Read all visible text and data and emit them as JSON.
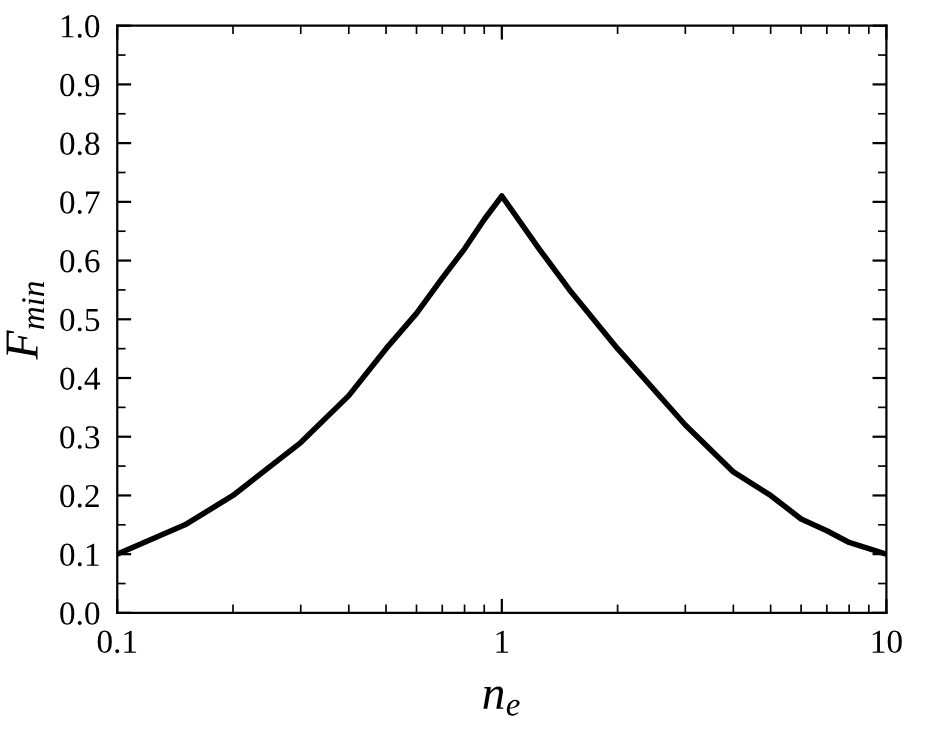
{
  "chart_data": {
    "type": "line",
    "xlabel": "n$_{e}$",
    "ylabel": "F$_{min}$",
    "log": "x",
    "x": [
      0.1,
      0.15,
      0.2,
      0.3,
      0.4,
      0.5,
      0.6,
      0.7,
      0.8,
      0.9,
      1,
      1.25,
      1.5,
      2,
      3,
      4,
      5,
      6,
      7,
      8,
      10
    ],
    "series": [
      {
        "color": "#000000",
        "values": [
          0.1,
          0.15,
          0.2,
          0.29,
          0.37,
          0.45,
          0.51,
          0.57,
          0.62,
          0.67,
          0.71,
          0.62,
          0.55,
          0.45,
          0.32,
          0.24,
          0.2,
          0.16,
          0.14,
          0.12,
          0.1
        ]
      }
    ],
    "xlim": [
      0.1,
      10
    ],
    "xticks": [
      0.1,
      1,
      10
    ],
    "ylim": [
      0,
      1.0
    ],
    "yticks": [
      {
        "value": 0,
        "label": "0.0"
      },
      0.1,
      0.2,
      0.3,
      0.4,
      0.5,
      0.6,
      0.7,
      0.8,
      0.9,
      {
        "value": 1.0,
        "label": "1.0"
      }
    ],
    "grid": false,
    "legend": false,
    "marker": "none",
    "line_style": "solid"
  }
}
